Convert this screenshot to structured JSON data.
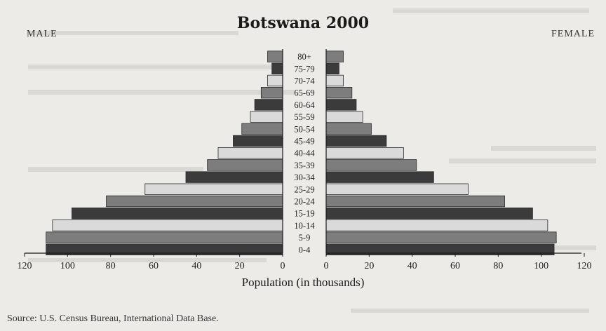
{
  "chart_data": {
    "type": "bar",
    "title": "Botswana 2000",
    "left_label": "MALE",
    "right_label": "FEMALE",
    "xlabel": "Population (in thousands)",
    "source": "Source: U.S. Census Bureau, International Data Base.",
    "xlim": [
      0,
      120
    ],
    "ticks": [
      120,
      100,
      80,
      60,
      40,
      20,
      0
    ],
    "categories": [
      "80+",
      "75-79",
      "70-74",
      "65-69",
      "60-64",
      "55-59",
      "50-54",
      "45-49",
      "40-44",
      "35-39",
      "30-34",
      "25-29",
      "20-24",
      "15-19",
      "10-14",
      "5-9",
      "0-4"
    ],
    "series": [
      {
        "name": "MALE",
        "values": [
          7,
          5,
          7,
          10,
          13,
          15,
          19,
          23,
          30,
          35,
          45,
          64,
          82,
          98,
          107,
          110,
          110
        ]
      },
      {
        "name": "FEMALE",
        "values": [
          8,
          6,
          8,
          12,
          14,
          17,
          21,
          28,
          36,
          42,
          50,
          66,
          83,
          96,
          103,
          107,
          106
        ]
      }
    ],
    "legend": "none",
    "grid": false
  },
  "colors": {
    "background": "#ecebe8",
    "bar_dark": "#3b3b3b",
    "bar_mid": "#7d7d7d",
    "bar_light": "#dadada",
    "bar_outline": "#2a2a2a",
    "axis": "#1a1a1a"
  }
}
